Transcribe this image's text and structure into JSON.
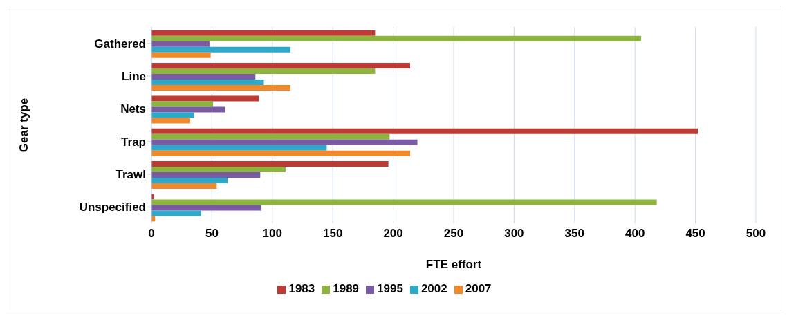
{
  "chart_data": {
    "type": "bar",
    "orientation": "horizontal",
    "xlabel": "FTE effort",
    "ylabel": "Gear type",
    "categories": [
      "Gathered",
      "Line",
      "Nets",
      "Trap",
      "Trawl",
      "Unspecified"
    ],
    "series": [
      {
        "name": "1983",
        "color": "#be3a34",
        "values": [
          185,
          214,
          89,
          452,
          196,
          2
        ]
      },
      {
        "name": "1989",
        "color": "#8db43e",
        "values": [
          405,
          185,
          51,
          197,
          111,
          418
        ]
      },
      {
        "name": "1995",
        "color": "#7b5aa6",
        "values": [
          48,
          86,
          61,
          220,
          90,
          91
        ]
      },
      {
        "name": "2002",
        "color": "#2fa9c9",
        "values": [
          115,
          93,
          35,
          145,
          63,
          41
        ]
      },
      {
        "name": "2007",
        "color": "#f0892a",
        "values": [
          49,
          115,
          32,
          214,
          54,
          3
        ]
      }
    ],
    "xlim": [
      0,
      500
    ],
    "xticks": [
      0,
      50,
      100,
      150,
      200,
      250,
      300,
      350,
      400,
      450,
      500
    ],
    "grid": "x",
    "legend": "bottom"
  }
}
